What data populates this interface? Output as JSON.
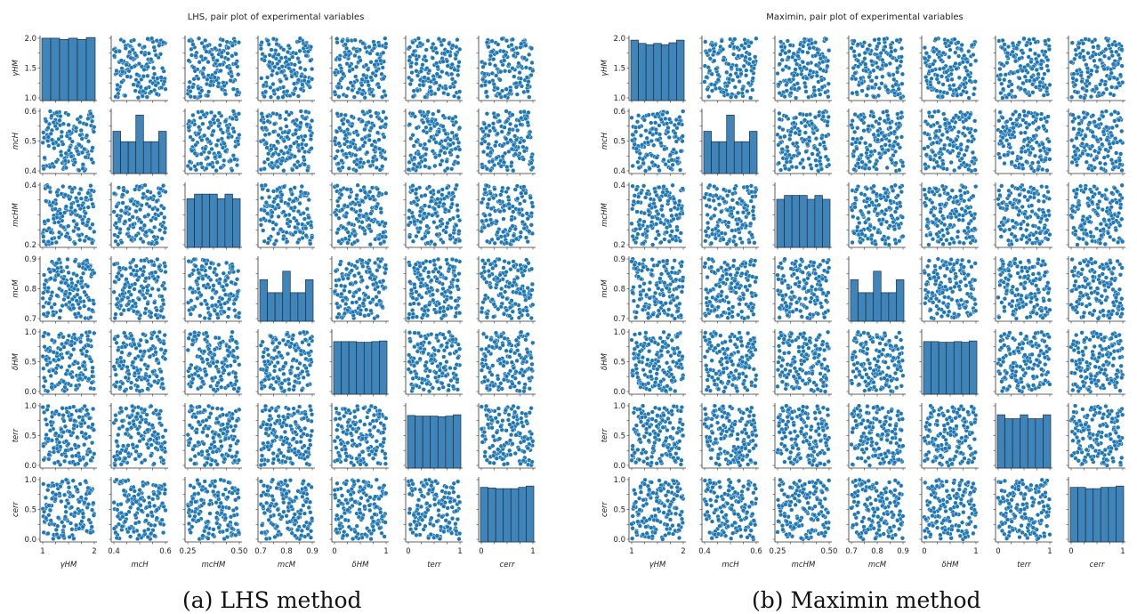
{
  "chart_data": [
    {
      "type": "scatter",
      "subtype": "pairplot",
      "title": "LHS, pair plot of experimental variables",
      "variables": [
        {
          "key": "gHM",
          "label": "γHM",
          "ylim": [
            1.0,
            2.0
          ],
          "xlim": [
            1.0,
            2.0
          ],
          "yticks": [
            "1.0",
            "1.5",
            "2.0"
          ],
          "xticks": [
            "1",
            "2"
          ]
        },
        {
          "key": "mcH",
          "label": "mcH",
          "ylim": [
            0.4,
            0.6
          ],
          "xlim": [
            0.4,
            0.6
          ],
          "yticks": [
            "0.4",
            "0.5",
            "0.6"
          ],
          "xticks": [
            "0.4",
            "0.6"
          ]
        },
        {
          "key": "mcHM",
          "label": "mcHM",
          "ylim": [
            0.1,
            0.5
          ],
          "xlim": [
            0.1,
            0.5
          ],
          "yticks": [
            "0.2",
            "0.4"
          ],
          "xticks": [
            "0.25",
            "0.50"
          ]
        },
        {
          "key": "mcM",
          "label": "mcM",
          "ylim": [
            0.7,
            0.9
          ],
          "xlim": [
            0.7,
            0.9
          ],
          "yticks": [
            "0.7",
            "0.8",
            "0.9"
          ],
          "xticks": [
            "0.7",
            "0.8",
            "0.9"
          ]
        },
        {
          "key": "dHM",
          "label": "δHM",
          "ylim": [
            0.0,
            1.0
          ],
          "xlim": [
            0.0,
            1.0
          ],
          "yticks": [
            "0.0",
            "0.5",
            "1.0"
          ],
          "xticks": [
            "0",
            "1"
          ]
        },
        {
          "key": "terr",
          "label": "terr",
          "ylim": [
            0.0,
            1.0
          ],
          "xlim": [
            0.0,
            1.0
          ],
          "yticks": [
            "0.0",
            "0.5",
            "1.0"
          ],
          "xticks": [
            "0",
            "1"
          ]
        },
        {
          "key": "cerr",
          "label": "cerr",
          "ylim": [
            0.0,
            1.0
          ],
          "xlim": [
            0.0,
            1.0
          ],
          "yticks": [
            "0.0",
            "0.5",
            "1.0"
          ],
          "xticks": [
            "0",
            "1"
          ]
        }
      ],
      "histograms": [
        [
          0.96,
          0.96,
          0.94,
          0.96,
          0.94,
          0.97
        ],
        [
          0.65,
          0.49,
          0.49,
          0.9,
          0.49,
          0.49,
          0.65
        ],
        [
          0.75,
          0.82,
          0.82,
          0.82,
          0.75,
          0.82,
          0.75
        ],
        [
          0.64,
          0.44,
          0.44,
          0.77,
          0.44,
          0.44,
          0.64
        ],
        [
          0.81,
          0.81,
          0.81,
          0.8,
          0.8,
          0.81,
          0.82
        ],
        [
          0.81,
          0.8,
          0.8,
          0.8,
          0.79,
          0.8,
          0.82
        ],
        [
          0.84,
          0.83,
          0.82,
          0.82,
          0.82,
          0.84,
          0.86
        ]
      ],
      "points": 150,
      "point_color": "#1f77b4",
      "bar_color": "#3f85b9",
      "caption": "(a) LHS method"
    },
    {
      "type": "scatter",
      "subtype": "pairplot",
      "title": "Maximin, pair plot of experimental variables",
      "variables": [
        {
          "key": "gHM",
          "label": "γHM",
          "ylim": [
            1.0,
            2.0
          ],
          "xlim": [
            1.0,
            2.0
          ],
          "yticks": [
            "1.0",
            "1.5",
            "2.0"
          ],
          "xticks": [
            "1",
            "2"
          ]
        },
        {
          "key": "mcH",
          "label": "mcH",
          "ylim": [
            0.4,
            0.6
          ],
          "xlim": [
            0.4,
            0.6
          ],
          "yticks": [
            "0.4",
            "0.5",
            "0.6"
          ],
          "xticks": [
            "0.4",
            "0.6"
          ]
        },
        {
          "key": "mcHM",
          "label": "mcHM",
          "ylim": [
            0.1,
            0.5
          ],
          "xlim": [
            0.1,
            0.5
          ],
          "yticks": [
            "0.2",
            "0.4"
          ],
          "xticks": [
            "0.25",
            "0.50"
          ]
        },
        {
          "key": "mcM",
          "label": "mcM",
          "ylim": [
            0.7,
            0.9
          ],
          "xlim": [
            0.7,
            0.9
          ],
          "yticks": [
            "0.7",
            "0.8",
            "0.9"
          ],
          "xticks": [
            "0.7",
            "0.8",
            "0.9"
          ]
        },
        {
          "key": "dHM",
          "label": "δHM",
          "ylim": [
            0.0,
            1.0
          ],
          "xlim": [
            0.0,
            1.0
          ],
          "yticks": [
            "0.0",
            "0.5",
            "1.0"
          ],
          "xticks": [
            "0",
            "1"
          ]
        },
        {
          "key": "terr",
          "label": "terr",
          "ylim": [
            0.0,
            1.0
          ],
          "xlim": [
            0.0,
            1.0
          ],
          "yticks": [
            "0.0",
            "0.5",
            "1.0"
          ],
          "xticks": [
            "0",
            "1"
          ]
        },
        {
          "key": "cerr",
          "label": "cerr",
          "ylim": [
            0.0,
            1.0
          ],
          "xlim": [
            0.0,
            1.0
          ],
          "yticks": [
            "0.0",
            "0.5",
            "1.0"
          ],
          "xticks": [
            "0",
            "1"
          ]
        }
      ],
      "histograms": [
        [
          0.93,
          0.88,
          0.86,
          0.88,
          0.86,
          0.89,
          0.93
        ],
        [
          0.65,
          0.49,
          0.49,
          0.9,
          0.49,
          0.49,
          0.65
        ],
        [
          0.74,
          0.8,
          0.8,
          0.8,
          0.74,
          0.8,
          0.74
        ],
        [
          0.64,
          0.44,
          0.44,
          0.77,
          0.44,
          0.44,
          0.64
        ],
        [
          0.81,
          0.81,
          0.8,
          0.8,
          0.81,
          0.8,
          0.82
        ],
        [
          0.82,
          0.76,
          0.76,
          0.82,
          0.76,
          0.76,
          0.82
        ],
        [
          0.84,
          0.84,
          0.82,
          0.82,
          0.84,
          0.84,
          0.86
        ]
      ],
      "points": 150,
      "point_color": "#1f77b4",
      "bar_color": "#3f85b9",
      "caption": "(b) Maximin method"
    }
  ]
}
